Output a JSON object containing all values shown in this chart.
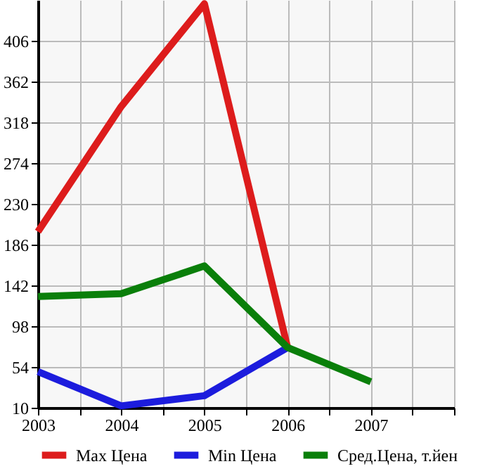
{
  "chart_data": {
    "type": "line",
    "x": [
      2003,
      2004,
      2005,
      2006,
      2007
    ],
    "series": [
      {
        "name": "Max Цена",
        "color": "#dd1c1c",
        "values": [
          200,
          335,
          446,
          75,
          null
        ]
      },
      {
        "name": "Min Цена",
        "color": "#1c1cdd",
        "values": [
          49,
          12,
          23,
          75,
          null
        ]
      },
      {
        "name": "Сред.Цена, т.йен",
        "color": "#0a7f0a",
        "values": [
          130,
          133,
          163,
          75,
          38
        ]
      }
    ],
    "xlim": [
      2003,
      2008
    ],
    "xticks": [
      2003,
      {
        "value": 2003.5,
        "label": null
      },
      2004,
      {
        "value": 2004.5,
        "label": null
      },
      2005,
      {
        "value": 2005.5,
        "label": null
      },
      2006,
      {
        "value": 2006.5,
        "label": null
      },
      2007,
      {
        "value": 2007.5,
        "label": null
      },
      {
        "value": 2008,
        "label": null
      }
    ],
    "ylim": [
      10,
      450
    ],
    "yticks": [
      10,
      54,
      98,
      142,
      186,
      230,
      274,
      318,
      362,
      406
    ],
    "grid": true,
    "legend": "bottom",
    "marker": "none",
    "line_style": "solid"
  }
}
